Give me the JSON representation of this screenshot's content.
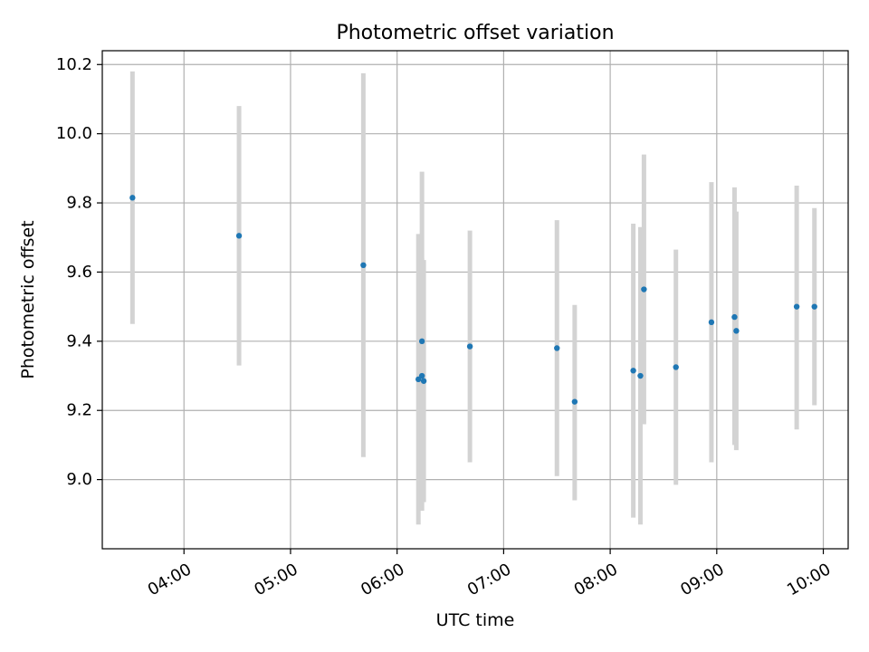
{
  "chart_data": {
    "type": "scatter",
    "title": "Photometric offset variation",
    "xlabel": "UTC time",
    "ylabel": "Photometric offset",
    "x_is_time": true,
    "xlim": [
      "03:14",
      "10:14"
    ],
    "ylim": [
      8.8,
      10.24
    ],
    "x_ticks": [
      "04:00",
      "05:00",
      "06:00",
      "07:00",
      "08:00",
      "09:00",
      "10:00"
    ],
    "y_ticks": [
      9.0,
      9.2,
      9.4,
      9.6,
      9.8,
      10.0,
      10.2
    ],
    "y_tick_labels": [
      "9.0",
      "9.2",
      "9.4",
      "9.6",
      "9.8",
      "10.0",
      "10.2"
    ],
    "grid": true,
    "colors": {
      "points": "#1f77b4",
      "errorbars": "#d3d3d3",
      "grid": "#b0b0b0"
    },
    "series": [
      {
        "points": [
          {
            "x": "03:31",
            "y": 9.815,
            "low": 9.45,
            "high": 10.18
          },
          {
            "x": "04:31",
            "y": 9.705,
            "low": 9.33,
            "high": 10.08
          },
          {
            "x": "05:41",
            "y": 9.62,
            "low": 9.065,
            "high": 10.175
          },
          {
            "x": "06:12",
            "y": 9.29,
            "low": 8.87,
            "high": 9.71
          },
          {
            "x": "06:14",
            "y": 9.4,
            "low": 8.91,
            "high": 9.89
          },
          {
            "x": "06:14",
            "y": 9.3,
            "low": 8.96,
            "high": 9.64
          },
          {
            "x": "06:15",
            "y": 9.285,
            "low": 8.935,
            "high": 9.635
          },
          {
            "x": "06:41",
            "y": 9.385,
            "low": 9.05,
            "high": 9.72
          },
          {
            "x": "07:30",
            "y": 9.38,
            "low": 9.01,
            "high": 9.75
          },
          {
            "x": "07:40",
            "y": 9.225,
            "low": 8.94,
            "high": 9.505
          },
          {
            "x": "08:13",
            "y": 9.315,
            "low": 8.89,
            "high": 9.74
          },
          {
            "x": "08:17",
            "y": 9.3,
            "low": 8.87,
            "high": 9.73
          },
          {
            "x": "08:19",
            "y": 9.55,
            "low": 9.16,
            "high": 9.94
          },
          {
            "x": "08:37",
            "y": 9.325,
            "low": 8.985,
            "high": 9.665
          },
          {
            "x": "08:57",
            "y": 9.455,
            "low": 9.05,
            "high": 9.86
          },
          {
            "x": "09:10",
            "y": 9.47,
            "low": 9.1,
            "high": 9.845
          },
          {
            "x": "09:11",
            "y": 9.43,
            "low": 9.085,
            "high": 9.775
          },
          {
            "x": "09:45",
            "y": 9.5,
            "low": 9.145,
            "high": 9.85
          },
          {
            "x": "09:55",
            "y": 9.5,
            "low": 9.215,
            "high": 9.785
          }
        ]
      }
    ]
  }
}
